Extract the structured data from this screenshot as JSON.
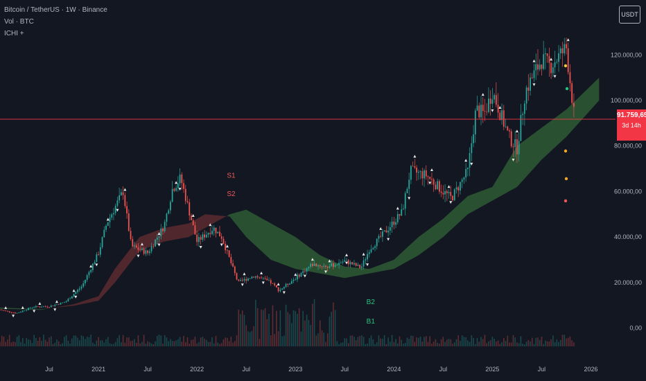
{
  "legend": {
    "symbol": "Bitcoin / TetherUS · 1W · Binance",
    "volume": "Vol · BTC",
    "indicator": "ICHI +"
  },
  "currency_button": "USDT",
  "last_price": {
    "value": "91.759,65",
    "countdown": "3d 14h",
    "numeric": 91760
  },
  "colors": {
    "background": "#131722",
    "up": "#26a69a",
    "down": "#ef5350",
    "cloud_bull": "#2e5a34",
    "cloud_bear": "#5a2a2e",
    "price_line": "#f23645",
    "signal_green": "#26c281",
    "signal_red": "#f05a5a"
  },
  "chart_data": {
    "type": "candlestick",
    "y_axis": {
      "ticks": [
        0,
        20000,
        40000,
        60000,
        80000,
        100000,
        120000
      ],
      "tick_labels": [
        "0,00",
        "20.000,00",
        "40.000,00",
        "60.000,00",
        "80.000,00",
        "100.000,00",
        "120.000,00"
      ],
      "range": [
        -5000,
        135000
      ]
    },
    "x_axis": {
      "labels": [
        "Jul",
        "2021",
        "Jul",
        "2022",
        "Jul",
        "2023",
        "Jul",
        "2024",
        "Jul",
        "2025",
        "Jul",
        "2026"
      ],
      "range": [
        "2020-01",
        "2026-04"
      ]
    },
    "price_anchors": [
      [
        "2020-01",
        8000
      ],
      [
        "2020-03",
        6500
      ],
      [
        "2020-05",
        9300
      ],
      [
        "2020-07",
        9500
      ],
      [
        "2020-09",
        11500
      ],
      [
        "2020-11",
        18500
      ],
      [
        "2021-01",
        33000
      ],
      [
        "2021-02",
        46000
      ],
      [
        "2021-04",
        60000
      ],
      [
        "2021-05",
        36000
      ],
      [
        "2021-07",
        33000
      ],
      [
        "2021-09",
        45000
      ],
      [
        "2021-10",
        61000
      ],
      [
        "2021-11",
        66000
      ],
      [
        "2022-01",
        38000
      ],
      [
        "2022-03",
        44000
      ],
      [
        "2022-04",
        40000
      ],
      [
        "2022-05",
        30000
      ],
      [
        "2022-06",
        20000
      ],
      [
        "2022-08",
        23000
      ],
      [
        "2022-10",
        20000
      ],
      [
        "2022-11",
        16500
      ],
      [
        "2023-01",
        22000
      ],
      [
        "2023-03",
        28000
      ],
      [
        "2023-05",
        27000
      ],
      [
        "2023-07",
        29500
      ],
      [
        "2023-09",
        26500
      ],
      [
        "2023-10",
        34500
      ],
      [
        "2023-12",
        42500
      ],
      [
        "2024-02",
        51000
      ],
      [
        "2024-03",
        69000
      ],
      [
        "2024-05",
        67000
      ],
      [
        "2024-07",
        60000
      ],
      [
        "2024-08",
        57000
      ],
      [
        "2024-10",
        69000
      ],
      [
        "2024-11",
        96000
      ],
      [
        "2024-12",
        94000
      ],
      [
        "2025-01",
        104000
      ],
      [
        "2025-03",
        84000
      ],
      [
        "2025-04",
        79000
      ],
      [
        "2025-05",
        104000
      ],
      [
        "2025-07",
        118000
      ],
      [
        "2025-08",
        115000
      ],
      [
        "2025-10",
        123000
      ],
      [
        "2025-11",
        92000
      ]
    ],
    "cloud_anchors": [
      [
        "2020-01",
        9000,
        8500
      ],
      [
        "2020-06",
        8300,
        8000
      ],
      [
        "2020-10",
        9800,
        10500
      ],
      [
        "2021-01",
        12000,
        14000
      ],
      [
        "2021-03",
        20000,
        26000
      ],
      [
        "2021-06",
        34000,
        40000
      ],
      [
        "2021-09",
        38000,
        44000
      ],
      [
        "2021-12",
        40000,
        46000
      ],
      [
        "2022-02",
        44000,
        50000
      ],
      [
        "2022-05",
        50000,
        49000
      ],
      [
        "2022-07",
        52000,
        40000
      ],
      [
        "2022-10",
        46000,
        30000
      ],
      [
        "2023-01",
        40000,
        26000
      ],
      [
        "2023-04",
        32000,
        24000
      ],
      [
        "2023-07",
        27000,
        22000
      ],
      [
        "2023-10",
        26000,
        24000
      ],
      [
        "2024-01",
        30000,
        26000
      ],
      [
        "2024-04",
        40000,
        32000
      ],
      [
        "2024-07",
        48000,
        40000
      ],
      [
        "2024-10",
        58000,
        50000
      ],
      [
        "2025-01",
        62000,
        56000
      ],
      [
        "2025-04",
        80000,
        62000
      ],
      [
        "2025-07",
        88000,
        74000
      ],
      [
        "2025-10",
        96000,
        84000
      ],
      [
        "2026-02",
        110000,
        100000
      ]
    ],
    "signals": [
      {
        "label": "S1",
        "date": "2022-05",
        "value": 66000,
        "color": "#f05a5a"
      },
      {
        "label": "S2",
        "date": "2022-05",
        "value": 58000,
        "color": "#f05a5a"
      },
      {
        "label": "B2",
        "date": "2023-10",
        "value": 10500,
        "color": "#26c281"
      },
      {
        "label": "B1",
        "date": "2023-10",
        "value": 2000,
        "color": "#26c281"
      }
    ],
    "last_price": 91760,
    "grid": false,
    "scale": "linear"
  }
}
